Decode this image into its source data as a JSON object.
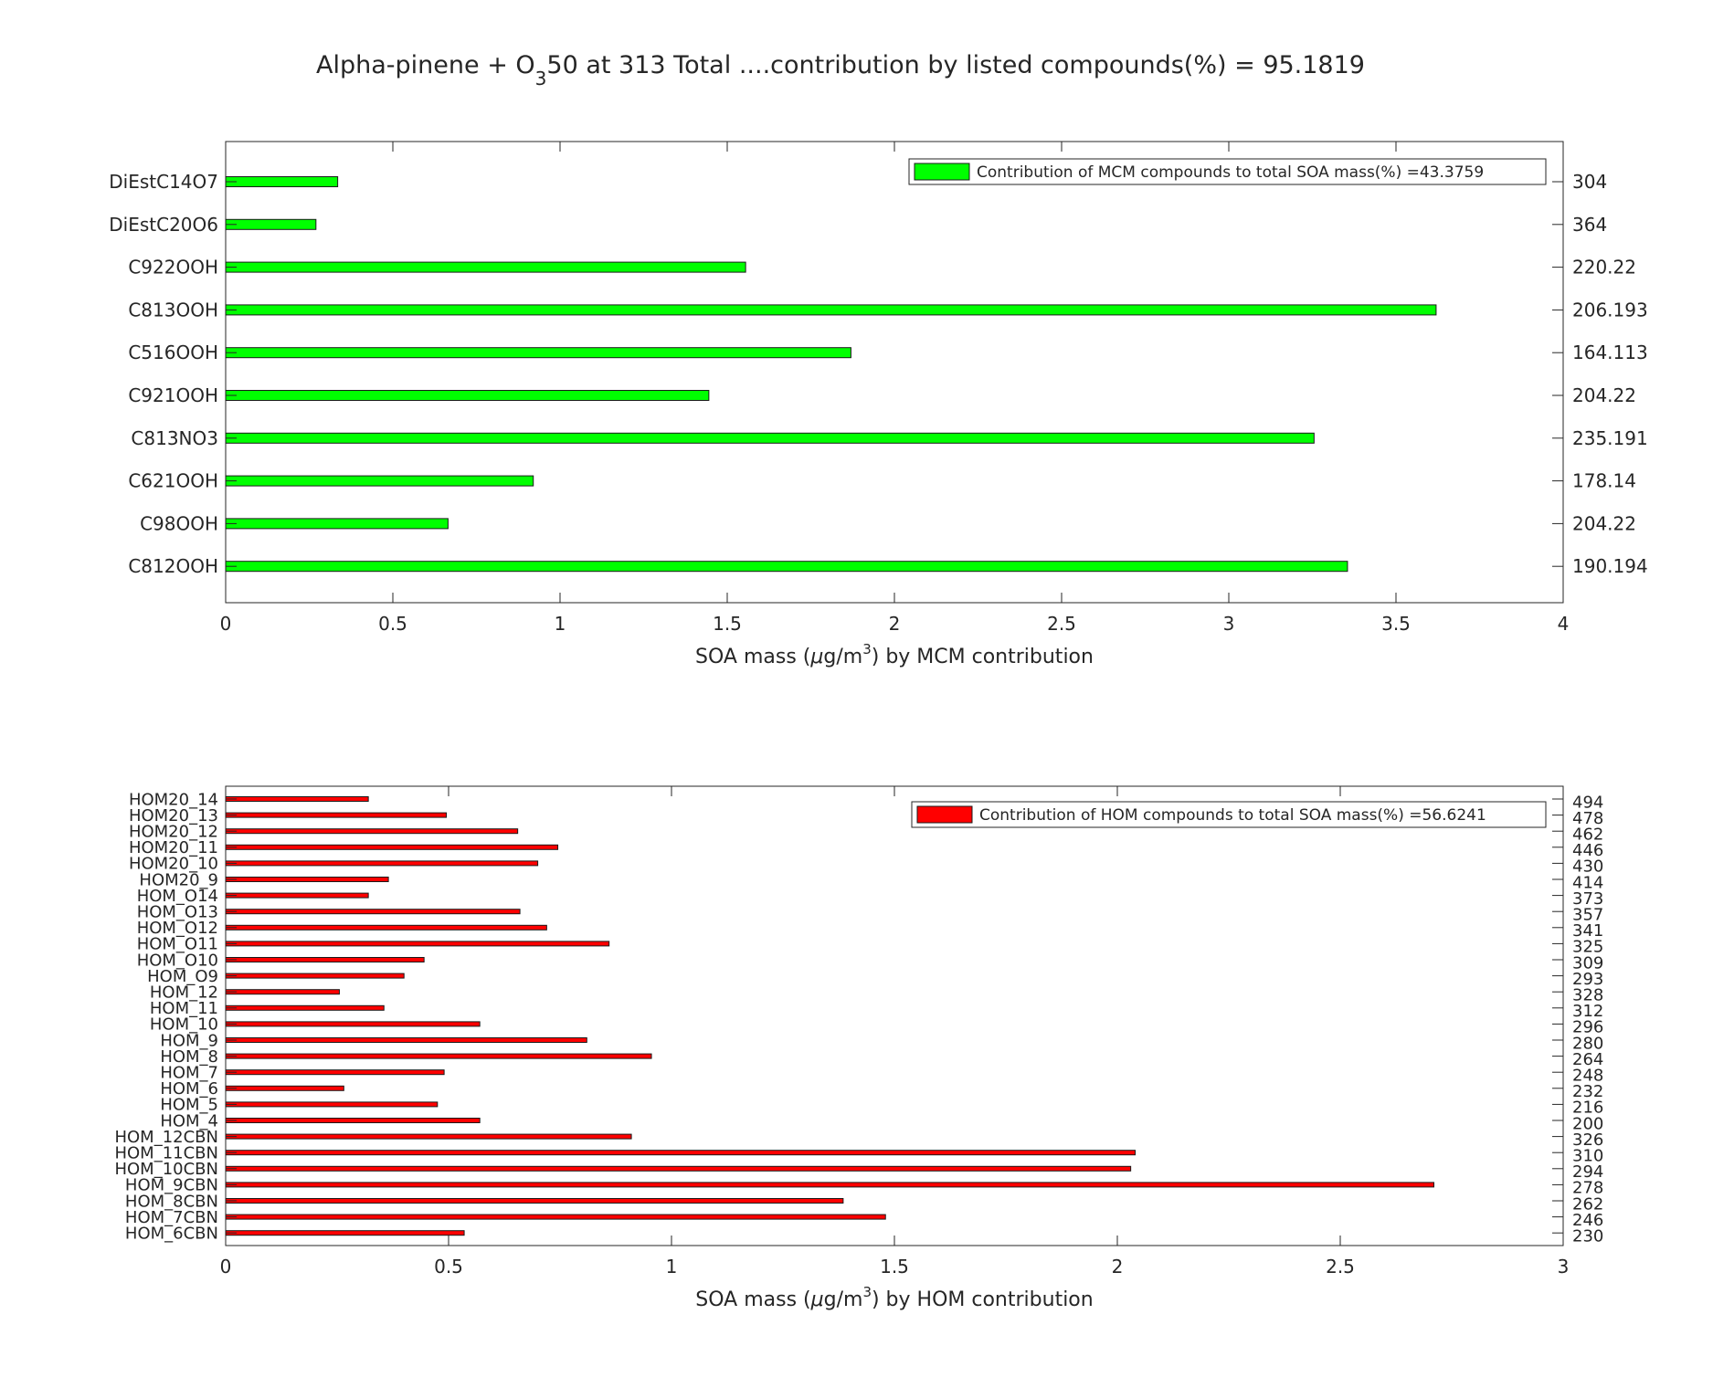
{
  "figure": {
    "title": {
      "prefix": "Alpha-pinene + O",
      "subscript": "3",
      "suffix": "50 at 313 Total ....contribution by listed compounds(%) = 95.1819"
    }
  },
  "chart_data": [
    {
      "type": "bar",
      "orientation": "horizontal",
      "title": "",
      "xlabel": {
        "prefix": "SOA mass (",
        "mu": "μ",
        "unit": "g/m",
        "sup": "3",
        "suffix": ") by MCM contribution"
      },
      "xlim": [
        0,
        4
      ],
      "xticks": [
        "0",
        "0.5",
        "1",
        "1.5",
        "2",
        "2.5",
        "3",
        "3.5",
        "4"
      ],
      "categories": [
        "DiEstC14O7",
        "DiEstC20O6",
        "C922OOH",
        "C813OOH",
        "C516OOH",
        "C921OOH",
        "C813NO3",
        "C621OOH",
        "C98OOH",
        "C812OOH"
      ],
      "right_labels": [
        "304",
        "364",
        "220.22",
        "206.193",
        "164.113",
        "204.22",
        "235.191",
        "178.14",
        "204.22",
        "190.194"
      ],
      "values": [
        0.335,
        0.27,
        1.555,
        3.62,
        1.87,
        1.445,
        3.255,
        0.92,
        0.665,
        3.355
      ],
      "legend": "Contribution of MCM compounds to total SOA mass(%) =43.3759",
      "legend_position": "top-right",
      "color": "#00ff00",
      "grid": false
    },
    {
      "type": "bar",
      "orientation": "horizontal",
      "title": "",
      "xlabel": {
        "prefix": "SOA mass (",
        "mu": "μ",
        "unit": "g/m",
        "sup": "3",
        "suffix": ") by HOM contribution"
      },
      "xlim": [
        0,
        3
      ],
      "xticks": [
        "0",
        "0.5",
        "1",
        "1.5",
        "2",
        "2.5",
        "3"
      ],
      "categories": [
        "HOM20_14",
        "HOM20_13",
        "HOM20_12",
        "HOM20_11",
        "HOM20_10",
        "HOM20_9",
        "HOM_O14",
        "HOM_O13",
        "HOM_O12",
        "HOM_O11",
        "HOM_O10",
        "HOM_O9",
        "HOM_12",
        "HOM_11",
        "HOM_10",
        "HOM_9",
        "HOM_8",
        "HOM_7",
        "HOM_6",
        "HOM_5",
        "HOM_4",
        "HOM_12CBN",
        "HOM_11CBN",
        "HOM_10CBN",
        "HOM_9CBN",
        "HOM_8CBN",
        "HOM_7CBN",
        "HOM_6CBN"
      ],
      "right_labels": [
        "494",
        "478",
        "462",
        "446",
        "430",
        "414",
        "373",
        "357",
        "341",
        "325",
        "309",
        "293",
        "328",
        "312",
        "296",
        "280",
        "264",
        "248",
        "232",
        "216",
        "200",
        "326",
        "310",
        "294",
        "278",
        "262",
        "246",
        "230"
      ],
      "values": [
        0.32,
        0.495,
        0.655,
        0.745,
        0.7,
        0.365,
        0.32,
        0.66,
        0.72,
        0.86,
        0.445,
        0.4,
        0.255,
        0.355,
        0.57,
        0.81,
        0.955,
        0.49,
        0.265,
        0.475,
        0.57,
        0.91,
        2.04,
        2.03,
        2.71,
        1.385,
        1.48,
        0.535
      ],
      "legend": "Contribution of HOM compounds to total SOA mass(%) =56.6241",
      "legend_position": "top-right",
      "color": "#ff0000",
      "grid": false
    }
  ]
}
